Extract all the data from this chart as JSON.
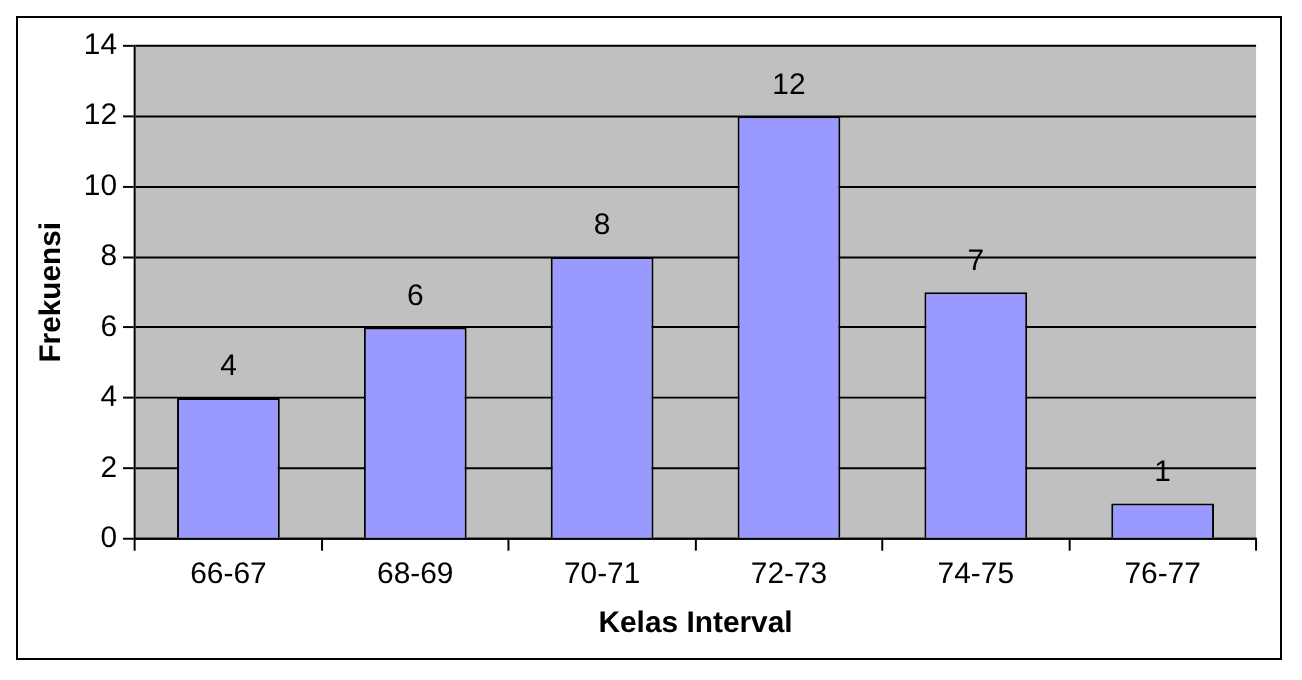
{
  "chart_data": {
    "type": "bar",
    "xlabel": "Kelas Interval",
    "ylabel": "Frekuensi",
    "categories": [
      "66-67",
      "68-69",
      "70-71",
      "72-73",
      "74-75",
      "76-77"
    ],
    "values": [
      4,
      6,
      8,
      12,
      7,
      1
    ],
    "color": "#9999ff",
    "ylim": [
      0,
      14
    ],
    "yticks": [
      0,
      2,
      4,
      6,
      8,
      10,
      12,
      14
    ],
    "grid": "y",
    "data_labels": true,
    "legend": false
  }
}
